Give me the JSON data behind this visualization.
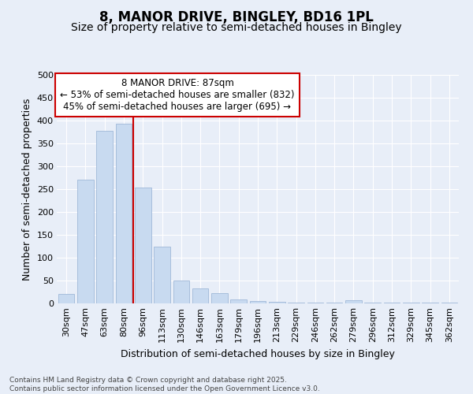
{
  "title_line1": "8, MANOR DRIVE, BINGLEY, BD16 1PL",
  "title_line2": "Size of property relative to semi-detached houses in Bingley",
  "xlabel": "Distribution of semi-detached houses by size in Bingley",
  "ylabel": "Number of semi-detached properties",
  "categories": [
    "30sqm",
    "47sqm",
    "63sqm",
    "80sqm",
    "96sqm",
    "113sqm",
    "130sqm",
    "146sqm",
    "163sqm",
    "179sqm",
    "196sqm",
    "213sqm",
    "229sqm",
    "246sqm",
    "262sqm",
    "279sqm",
    "296sqm",
    "312sqm",
    "329sqm",
    "345sqm",
    "362sqm"
  ],
  "values": [
    20,
    270,
    378,
    393,
    253,
    125,
    50,
    33,
    22,
    9,
    5,
    3,
    2,
    2,
    2,
    7,
    2,
    2,
    2,
    2,
    2
  ],
  "bar_color": "#c8daf0",
  "bar_edge_color": "#a0b8d8",
  "red_line_x": 3.5,
  "annotation_line1": "8 MANOR DRIVE: 87sqm",
  "annotation_line2": "← 53% of semi-detached houses are smaller (832)",
  "annotation_line3": "45% of semi-detached houses are larger (695) →",
  "annotation_box_facecolor": "#ffffff",
  "annotation_box_edgecolor": "#cc0000",
  "footer_line1": "Contains HM Land Registry data © Crown copyright and database right 2025.",
  "footer_line2": "Contains public sector information licensed under the Open Government Licence v3.0.",
  "bg_color": "#e8eef8",
  "ylim": [
    0,
    500
  ],
  "yticks": [
    0,
    50,
    100,
    150,
    200,
    250,
    300,
    350,
    400,
    450,
    500
  ],
  "grid_color": "#ffffff",
  "title1_fontsize": 12,
  "title2_fontsize": 10,
  "ylabel_fontsize": 9,
  "xlabel_fontsize": 9,
  "tick_fontsize": 8,
  "annot_fontsize": 8.5,
  "footer_fontsize": 6.5
}
